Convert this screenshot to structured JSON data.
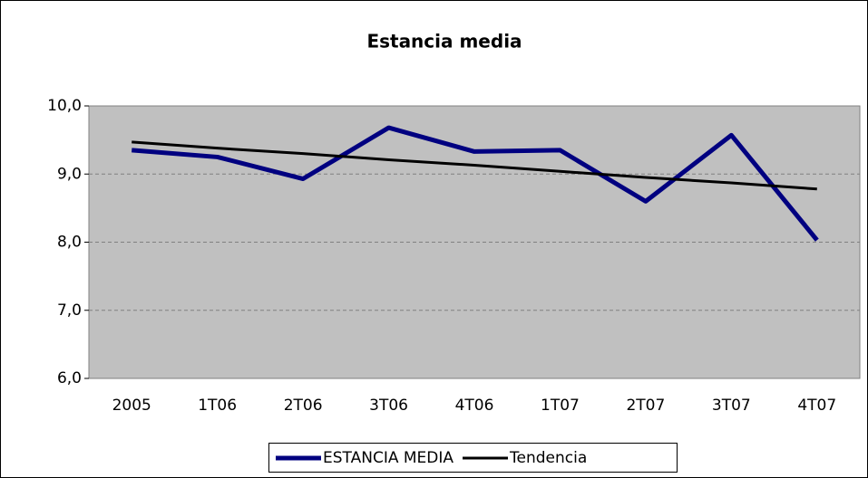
{
  "chart_data": {
    "type": "line",
    "title": "Estancia media",
    "categories": [
      "2005",
      "1T06",
      "2T06",
      "3T06",
      "4T06",
      "1T07",
      "2T07",
      "3T07",
      "4T07"
    ],
    "series": [
      {
        "name": "ESTANCIA MEDIA",
        "color": "#000080",
        "values": [
          9.35,
          9.25,
          8.93,
          9.68,
          9.33,
          9.35,
          8.6,
          9.57,
          8.03
        ]
      },
      {
        "name": "Tendencia",
        "color": "#000000",
        "values": [
          9.47,
          9.38,
          9.3,
          9.21,
          9.13,
          9.04,
          8.95,
          8.87,
          8.78
        ]
      }
    ],
    "ylim": [
      6,
      10
    ],
    "yticks": [
      {
        "value": 6,
        "label": "6,0"
      },
      {
        "value": 7,
        "label": "7,0"
      },
      {
        "value": 8,
        "label": "8,0"
      },
      {
        "value": 9,
        "label": "9,0"
      },
      {
        "value": 10,
        "label": "10,0"
      }
    ],
    "grid": true,
    "legend": "bottom"
  }
}
